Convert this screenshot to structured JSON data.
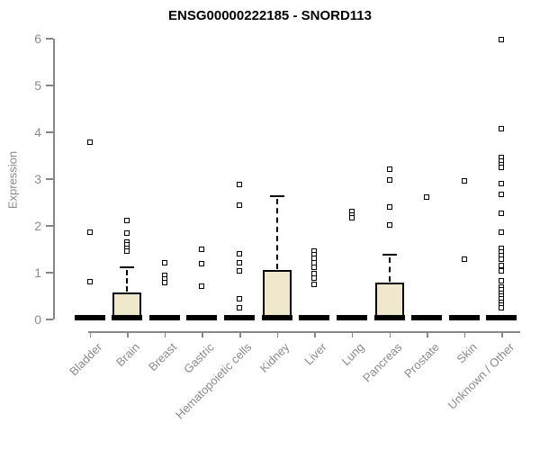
{
  "title": "ENSG00000222185 - SNORD113",
  "colors": {
    "title": "#000000",
    "axis": "#878787",
    "tick_label": "#8a8a8a",
    "box_fill": "#efe8cc",
    "box_border": "#000000",
    "outlier_fill": "#ffffff"
  },
  "chart_data": {
    "type": "boxplot",
    "title": "ENSG00000222185 - SNORD113",
    "xlabel": "",
    "ylabel": "Expression",
    "ylim": [
      0,
      6
    ],
    "yticks": [
      0,
      1,
      2,
      3,
      4,
      5,
      6
    ],
    "grid": false,
    "legend": "none",
    "categories": [
      "Bladder",
      "Brain",
      "Breast",
      "Gastric",
      "Hematopoietic cells",
      "Kidney",
      "Liver",
      "Lung",
      "Pancreas",
      "Prostate",
      "Skin",
      "Unknown / Other"
    ],
    "series": [
      {
        "label": "Bladder",
        "median": 0,
        "q1": 0,
        "q3": 0,
        "whisker_low": 0,
        "whisker_high": 0,
        "outliers": [
          3.79,
          1.87,
          0.8
        ]
      },
      {
        "label": "Brain",
        "median": 0,
        "q1": 0,
        "q3": 0.58,
        "whisker_low": 0,
        "whisker_high": 1.12,
        "outliers": [
          2.12,
          1.85,
          1.66,
          1.6,
          1.52,
          1.46
        ]
      },
      {
        "label": "Breast",
        "median": 0,
        "q1": 0,
        "q3": 0,
        "whisker_low": 0,
        "whisker_high": 0,
        "outliers": [
          1.21,
          0.95,
          0.87,
          0.78
        ]
      },
      {
        "label": "Gastric",
        "median": 0,
        "q1": 0,
        "q3": 0,
        "whisker_low": 0,
        "whisker_high": 0,
        "outliers": [
          1.5,
          1.19,
          0.71
        ]
      },
      {
        "label": "Hematopoietic cells",
        "median": 0,
        "q1": 0,
        "q3": 0,
        "whisker_low": 0,
        "whisker_high": 0,
        "outliers": [
          2.88,
          2.44,
          1.4,
          1.21,
          1.04,
          0.44,
          0.25
        ]
      },
      {
        "label": "Kidney",
        "median": 0,
        "q1": 0,
        "q3": 1.06,
        "whisker_low": 0,
        "whisker_high": 2.63,
        "outliers": []
      },
      {
        "label": "Liver",
        "median": 0,
        "q1": 0,
        "q3": 0,
        "whisker_low": 0,
        "whisker_high": 0,
        "outliers": [
          1.46,
          1.38,
          1.3,
          1.21,
          1.12,
          0.98,
          0.88,
          0.75
        ]
      },
      {
        "label": "Lung",
        "median": 0,
        "q1": 0,
        "q3": 0,
        "whisker_low": 0,
        "whisker_high": 0,
        "outliers": [
          2.31,
          2.24,
          2.17
        ]
      },
      {
        "label": "Pancreas",
        "median": 0,
        "q1": 0,
        "q3": 0.78,
        "whisker_low": 0,
        "whisker_high": 1.38,
        "outliers": [
          3.21,
          2.98,
          2.4,
          2.02
        ]
      },
      {
        "label": "Prostate",
        "median": 0,
        "q1": 0,
        "q3": 0,
        "whisker_low": 0,
        "whisker_high": 0,
        "outliers": [
          2.61
        ]
      },
      {
        "label": "Skin",
        "median": 0,
        "q1": 0,
        "q3": 0,
        "whisker_low": 0,
        "whisker_high": 0,
        "outliers": [
          2.96,
          1.29
        ]
      },
      {
        "label": "Unknown / Other",
        "median": 0,
        "q1": 0,
        "q3": 0,
        "whisker_low": 0,
        "whisker_high": 0,
        "outliers": [
          5.98,
          4.08,
          3.46,
          3.38,
          3.31,
          3.25,
          2.9,
          2.67,
          2.27,
          1.87,
          1.52,
          1.44,
          1.36,
          1.28,
          1.15,
          1.04,
          0.83,
          0.7,
          0.63,
          0.56,
          0.5,
          0.44,
          0.37,
          0.31,
          0.25
        ]
      }
    ]
  }
}
